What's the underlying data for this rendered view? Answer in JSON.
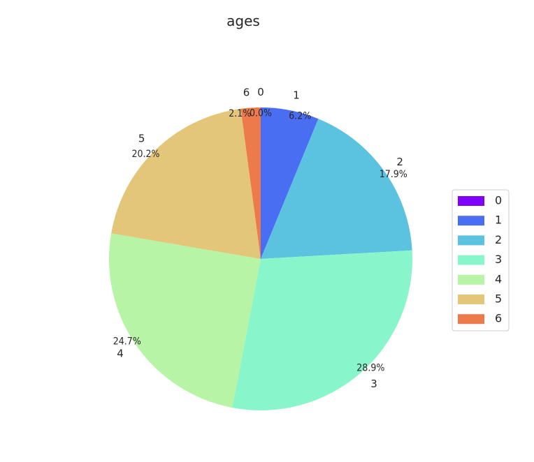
{
  "chart_data": {
    "type": "pie",
    "title": "ages",
    "categories": [
      "0",
      "1",
      "2",
      "3",
      "4",
      "5",
      "6"
    ],
    "values": [
      0.0,
      6.2,
      17.9,
      28.9,
      24.7,
      20.2,
      2.1
    ],
    "value_labels": [
      "0.0%",
      "6.2%",
      "17.9%",
      "28.9%",
      "24.7%",
      "20.2%",
      "2.1%"
    ],
    "colors": [
      "#7f00ff",
      "#4a6ef2",
      "#5bc2e0",
      "#89f5cb",
      "#b7f4a6",
      "#e3c67a",
      "#ec7a4b"
    ],
    "start_angle": 90,
    "direction": "clockwise",
    "legend": {
      "placement": "right",
      "entries": [
        "0",
        "1",
        "2",
        "3",
        "4",
        "5",
        "6"
      ]
    }
  }
}
